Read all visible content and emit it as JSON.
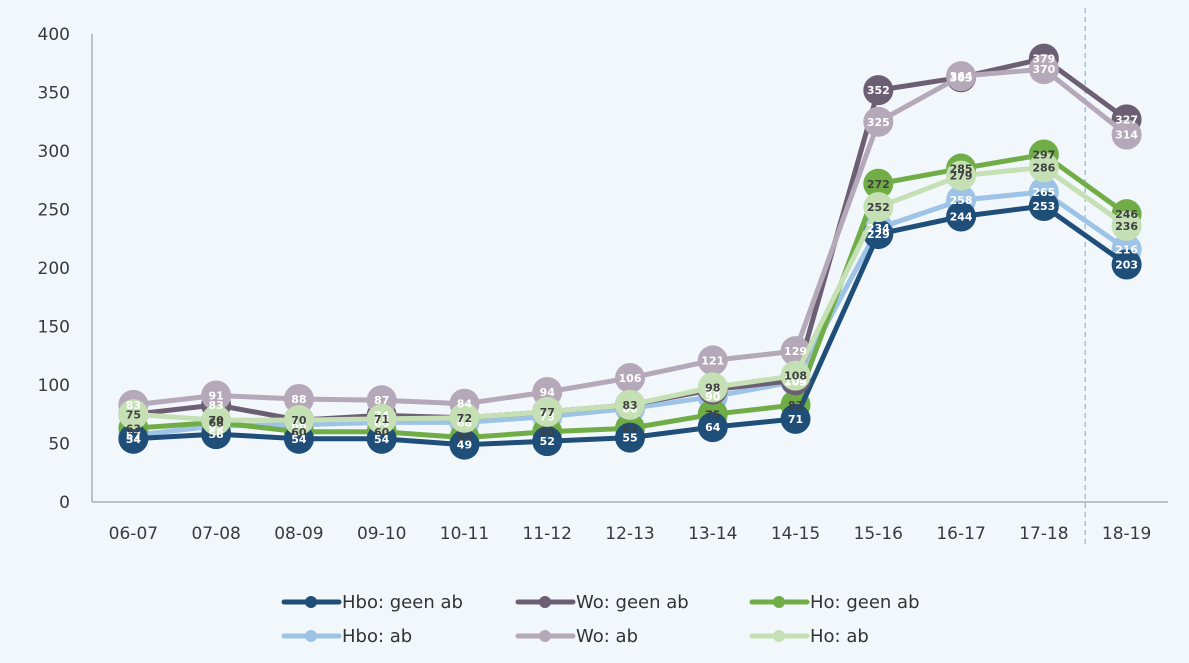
{
  "chart_data": {
    "type": "line",
    "title": "",
    "xlabel": "",
    "ylabel": "",
    "categories": [
      "06-07",
      "07-08",
      "08-09",
      "09-10",
      "10-11",
      "11-12",
      "12-13",
      "13-14",
      "14-15",
      "15-16",
      "16-17",
      "17-18",
      "18-19"
    ],
    "ylim": [
      0,
      400
    ],
    "yticks": [
      0,
      50,
      100,
      150,
      200,
      250,
      300,
      350,
      400
    ],
    "grid": false,
    "legend_position": "bottom",
    "divider_after_category": "17-18",
    "series": [
      {
        "name": "Hbo: ab",
        "color": "#9dc3e6",
        "values": [
          57,
          65,
          66,
          68,
          68,
          73,
          80,
          90,
          103,
          234,
          258,
          265,
          216
        ]
      },
      {
        "name": "Ho: geen ab",
        "color": "#70ad47",
        "values": [
          63,
          68,
          60,
          60,
          55,
          60,
          63,
          75,
          83,
          272,
          285,
          297,
          246
        ]
      },
      {
        "name": "Hbo: geen ab",
        "color": "#1f4e79",
        "values": [
          54,
          58,
          54,
          54,
          49,
          52,
          55,
          64,
          71,
          229,
          244,
          253,
          203
        ]
      },
      {
        "name": "Wo: geen ab",
        "color": "#6d5f73",
        "values": [
          75,
          83,
          70,
          74,
          72,
          77,
          83,
          96,
          104,
          352,
          363,
          379,
          327
        ]
      },
      {
        "name": "Wo: ab",
        "color": "#b4a8b9",
        "values": [
          83,
          91,
          88,
          87,
          84,
          94,
          106,
          121,
          129,
          325,
          364,
          370,
          314
        ]
      },
      {
        "name": "Ho: ab",
        "color": "#c5e0b4",
        "values": [
          75,
          70,
          70,
          71,
          72,
          77,
          83,
          98,
          108,
          252,
          279,
          286,
          236
        ]
      }
    ],
    "legend": [
      {
        "name": "Hbo: geen ab",
        "color": "#1f4e79"
      },
      {
        "name": "Wo: geen ab",
        "color": "#6d5f73"
      },
      {
        "name": "Ho: geen ab",
        "color": "#70ad47"
      },
      {
        "name": "Hbo: ab",
        "color": "#9dc3e6"
      },
      {
        "name": "Wo: ab",
        "color": "#b4a8b9"
      },
      {
        "name": "Ho: ab",
        "color": "#c5e0b4"
      }
    ]
  }
}
